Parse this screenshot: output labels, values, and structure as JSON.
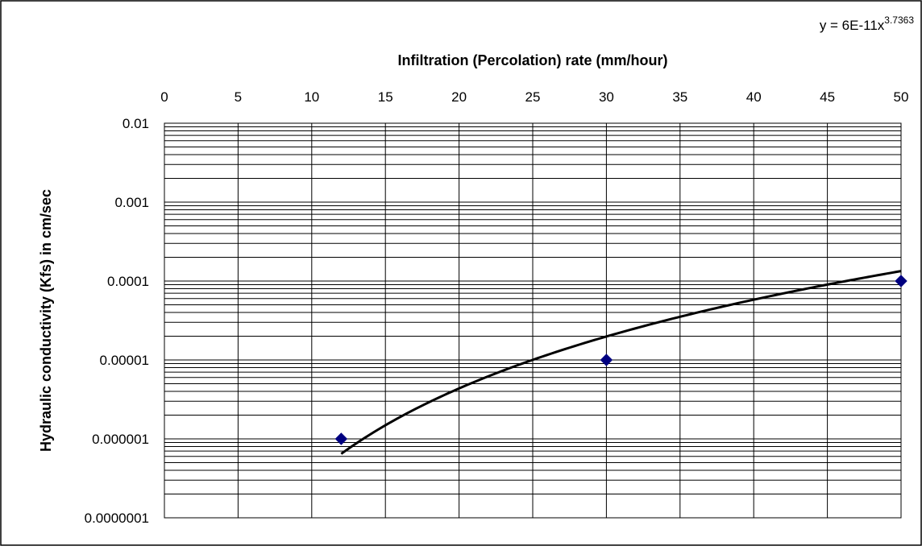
{
  "chart_data": {
    "type": "scatter",
    "title": "",
    "xlabel": "Infiltration (Percolation) rate (mm/hour)",
    "ylabel": "Hydraulic conductivity (Kfs) in cm/sec",
    "xlim": [
      0,
      50
    ],
    "ylim": [
      1e-07,
      0.01
    ],
    "y_scale": "log",
    "x_axis_position": "top",
    "grid": true,
    "x_ticks": [
      "0",
      "5",
      "10",
      "15",
      "20",
      "25",
      "30",
      "35",
      "40",
      "45",
      "50"
    ],
    "y_ticks": [
      "0.01",
      "0.001",
      "0.0001",
      "0.00001",
      "0.000001",
      "0.0000001"
    ],
    "series": [
      {
        "kind": "points",
        "marker": "diamond",
        "color": "#000080",
        "x": [
          12,
          30,
          50
        ],
        "y": [
          1e-06,
          1e-05,
          0.0001
        ]
      },
      {
        "kind": "trendline",
        "fit": "power",
        "coefficient": 6e-11,
        "exponent": 3.7363,
        "x_range": [
          12,
          50
        ],
        "color": "#000000"
      }
    ],
    "equation": {
      "base": "y = 6E-11x",
      "exponent": "3.7363"
    },
    "legend": "none"
  }
}
